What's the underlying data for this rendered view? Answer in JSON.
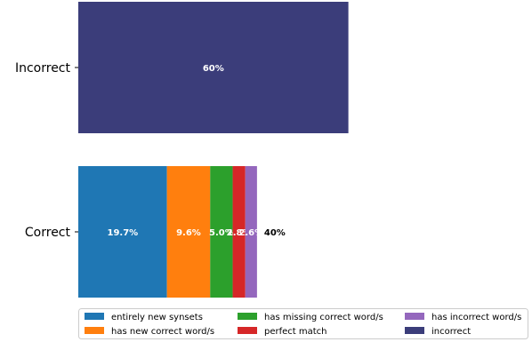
{
  "chart_data": {
    "type": "bar",
    "orientation": "horizontal",
    "stacked": true,
    "categories": [
      "Correct",
      "Incorrect"
    ],
    "xlim": [
      0,
      100
    ],
    "grid": false,
    "legend_position": "bottom",
    "series": [
      {
        "name": "entirely new synsets",
        "color": "#1f77b4",
        "values": [
          19.7,
          0
        ],
        "labels": [
          "19.7%",
          ""
        ]
      },
      {
        "name": "has new correct word/s",
        "color": "#ff7f0e",
        "values": [
          9.6,
          0
        ],
        "labels": [
          "9.6%",
          ""
        ]
      },
      {
        "name": "has missing correct word/s",
        "color": "#2ca02c",
        "values": [
          5.0,
          0
        ],
        "labels": [
          "5.0%",
          ""
        ]
      },
      {
        "name": "perfect match",
        "color": "#d62728",
        "values": [
          2.8,
          0
        ],
        "labels": [
          "2.8%",
          ""
        ]
      },
      {
        "name": "has incorrect word/s",
        "color": "#9467bd",
        "values": [
          2.6,
          0
        ],
        "labels": [
          "2.6%",
          ""
        ]
      },
      {
        "name": "incorrect",
        "color": "#3b3d7a",
        "values": [
          0,
          60
        ],
        "labels": [
          "",
          "60%"
        ]
      }
    ],
    "totals": {
      "Correct": "40%"
    }
  }
}
